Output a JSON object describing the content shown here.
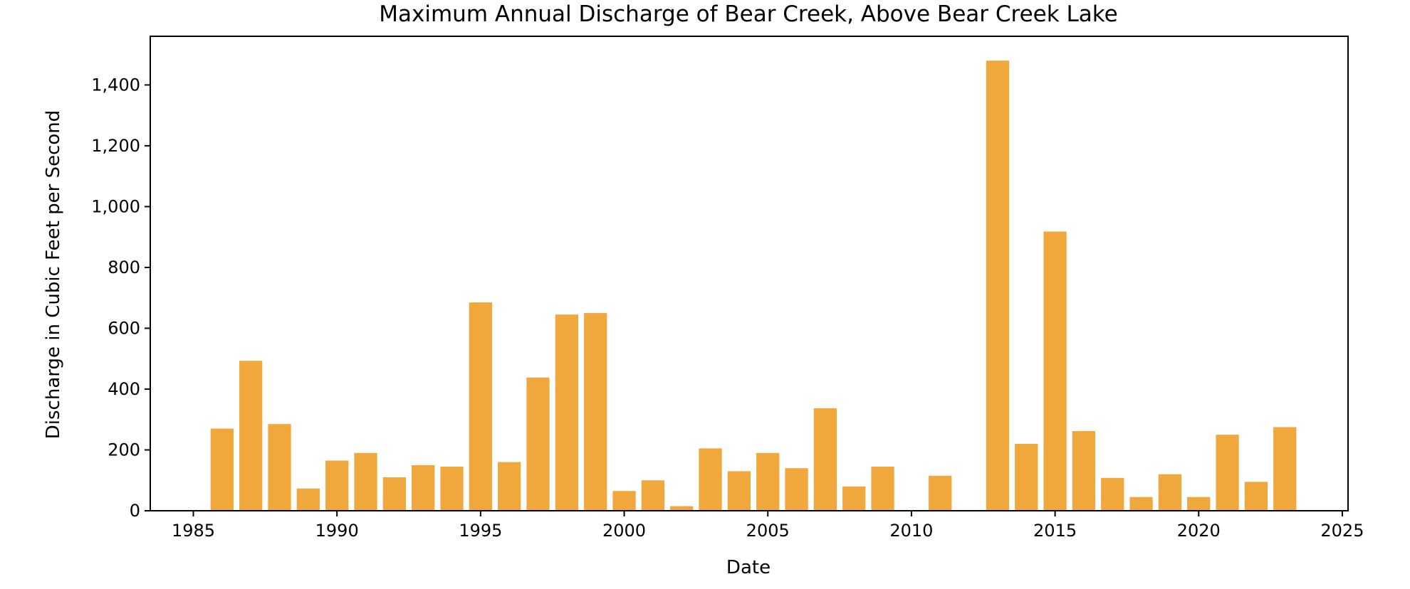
{
  "chart_data": {
    "type": "bar",
    "title": "Maximum Annual Discharge of Bear Creek, Above Bear Creek Lake",
    "xlabel": "Date",
    "ylabel": "Discharge in Cubic Feet per Second",
    "xlim": [
      1983.5,
      2025.2
    ],
    "ylim": [
      0,
      1560
    ],
    "xticks": [
      1985,
      1990,
      1995,
      2000,
      2005,
      2010,
      2015,
      2020,
      2025
    ],
    "xtick_labels": [
      "1985",
      "1990",
      "1995",
      "2000",
      "2005",
      "2010",
      "2015",
      "2020",
      "2025"
    ],
    "yticks": [
      0,
      200,
      400,
      600,
      800,
      1000,
      1200,
      1400
    ],
    "ytick_labels": [
      "0",
      "200",
      "400",
      "600",
      "800",
      "1,000",
      "1,200",
      "1,400"
    ],
    "grid": false,
    "bar_color": "#f0a83c",
    "bar_width_years": 0.8,
    "x": [
      1986,
      1987,
      1988,
      1989,
      1990,
      1991,
      1992,
      1993,
      1994,
      1995,
      1996,
      1997,
      1998,
      1999,
      2000,
      2001,
      2002,
      2003,
      2004,
      2005,
      2006,
      2007,
      2008,
      2009,
      2011,
      2013,
      2014,
      2015,
      2016,
      2017,
      2018,
      2019,
      2020,
      2021,
      2022,
      2023
    ],
    "values": [
      270,
      493,
      285,
      73,
      165,
      190,
      110,
      150,
      145,
      685,
      160,
      438,
      645,
      650,
      65,
      100,
      15,
      205,
      130,
      190,
      140,
      337,
      80,
      145,
      115,
      1480,
      220,
      918,
      262,
      108,
      45,
      120,
      45,
      250,
      95,
      275
    ]
  }
}
